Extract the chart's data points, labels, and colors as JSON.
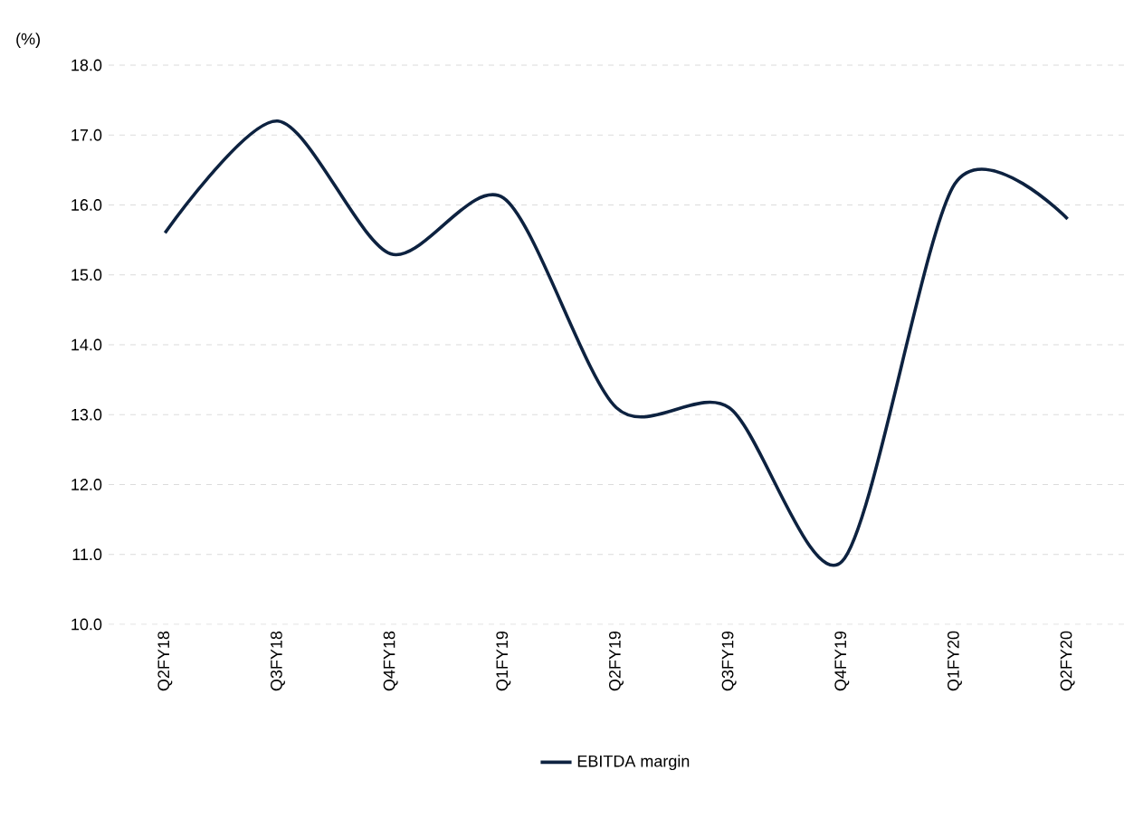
{
  "chart_data": {
    "type": "line",
    "ylabel": "(%)",
    "categories": [
      "Q2FY18",
      "Q3FY18",
      "Q4FY18",
      "Q1FY19",
      "Q2FY19",
      "Q3FY19",
      "Q4FY19",
      "Q1FY20",
      "Q2FY20"
    ],
    "series": [
      {
        "name": "EBITDA margin",
        "color": "#0d2240",
        "values": [
          15.6,
          17.2,
          15.3,
          16.1,
          13.1,
          13.1,
          10.9,
          16.3,
          15.8
        ]
      }
    ],
    "ylim": [
      10.0,
      18.0
    ],
    "yticks": [
      {
        "value": 10,
        "label": "10.0"
      },
      {
        "value": 11,
        "label": "11.0"
      },
      {
        "value": 12,
        "label": "12.0"
      },
      {
        "value": 13,
        "label": "13.0"
      },
      {
        "value": 14,
        "label": "14.0"
      },
      {
        "value": 15,
        "label": "15.0"
      },
      {
        "value": 16,
        "label": "16.0"
      },
      {
        "value": 17,
        "label": "17.0"
      },
      {
        "value": 18,
        "label": "18.0"
      }
    ],
    "grid": "y",
    "legend": "bottom",
    "marker": "none",
    "line_style": "solid"
  }
}
